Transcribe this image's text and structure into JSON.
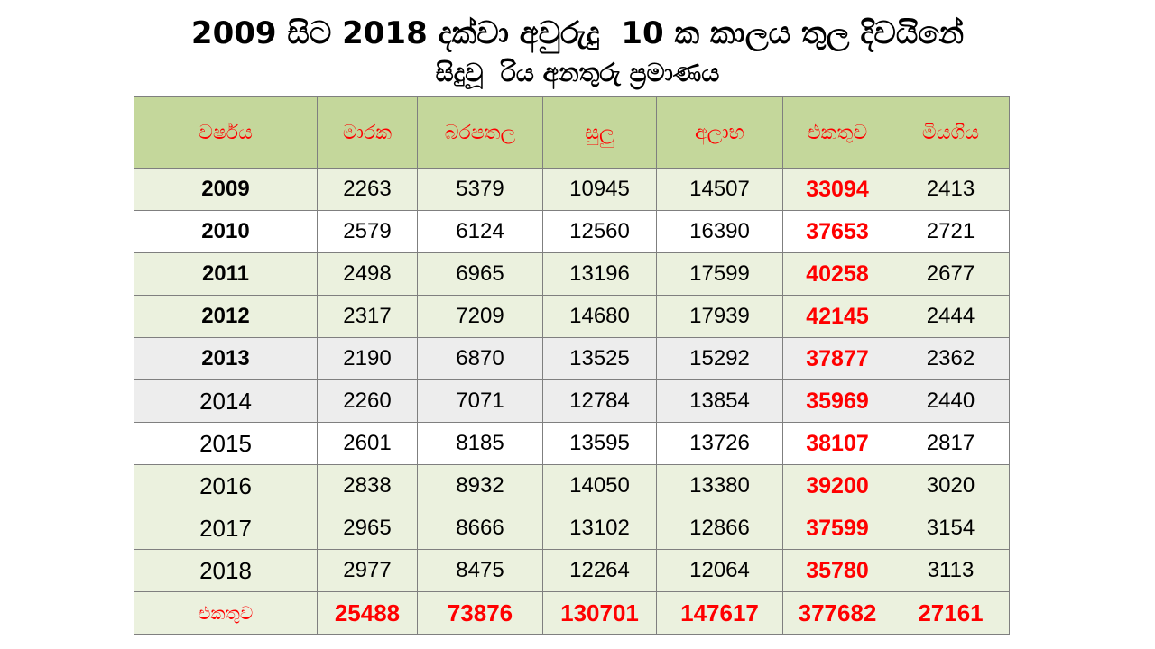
{
  "title": {
    "line1": "2009 සිට 2018 දක්වා අවුරුදු  10 ක කාලය තුල දිවයිනේ",
    "line2": "සිදුවූ  රිය අනතුරු ප්‍රමාණය"
  },
  "table": {
    "headers": [
      "වර්ෂය",
      "මාරක",
      "බරපතල",
      "සුලු",
      "අලාභ",
      "එකතුව",
      "මියගිය"
    ],
    "rows": [
      {
        "year": "2009",
        "fatal": "2263",
        "grievous": "5379",
        "minor": "10945",
        "damage": "14507",
        "total": "33094",
        "killed": "2413"
      },
      {
        "year": "2010",
        "fatal": "2579",
        "grievous": "6124",
        "minor": "12560",
        "damage": "16390",
        "total": "37653",
        "killed": "2721"
      },
      {
        "year": "2011",
        "fatal": "2498",
        "grievous": "6965",
        "minor": "13196",
        "damage": "17599",
        "total": "40258",
        "killed": "2677"
      },
      {
        "year": "2012",
        "fatal": "2317",
        "grievous": "7209",
        "minor": "14680",
        "damage": "17939",
        "total": "42145",
        "killed": "2444"
      },
      {
        "year": "2013",
        "fatal": "2190",
        "grievous": "6870",
        "minor": "13525",
        "damage": "15292",
        "total": "37877",
        "killed": "2362"
      },
      {
        "year": "2014",
        "fatal": "2260",
        "grievous": "7071",
        "minor": "12784",
        "damage": "13854",
        "total": "35969",
        "killed": "2440"
      },
      {
        "year": "2015",
        "fatal": "2601",
        "grievous": "8185",
        "minor": "13595",
        "damage": "13726",
        "total": "38107",
        "killed": "2817"
      },
      {
        "year": "2016",
        "fatal": "2838",
        "grievous": "8932",
        "minor": "14050",
        "damage": "13380",
        "total": "39200",
        "killed": "3020"
      },
      {
        "year": "2017",
        "fatal": "2965",
        "grievous": "8666",
        "minor": "13102",
        "damage": "12866",
        "total": "37599",
        "killed": "3154"
      },
      {
        "year": "2018",
        "fatal": "2977",
        "grievous": "8475",
        "minor": "12264",
        "damage": "12064",
        "total": "35780",
        "killed": "3113"
      }
    ],
    "footer": {
      "label": "එකතුව",
      "fatal": "25488",
      "grievous": "73876",
      "minor": "130701",
      "damage": "147617",
      "total": "377682",
      "killed": "27161"
    }
  },
  "colors": {
    "header_bg": "#c4d79b",
    "row_bg_green": "#ebf1de",
    "row_bg_gray": "#ededed",
    "accent_red": "#ff0000"
  }
}
